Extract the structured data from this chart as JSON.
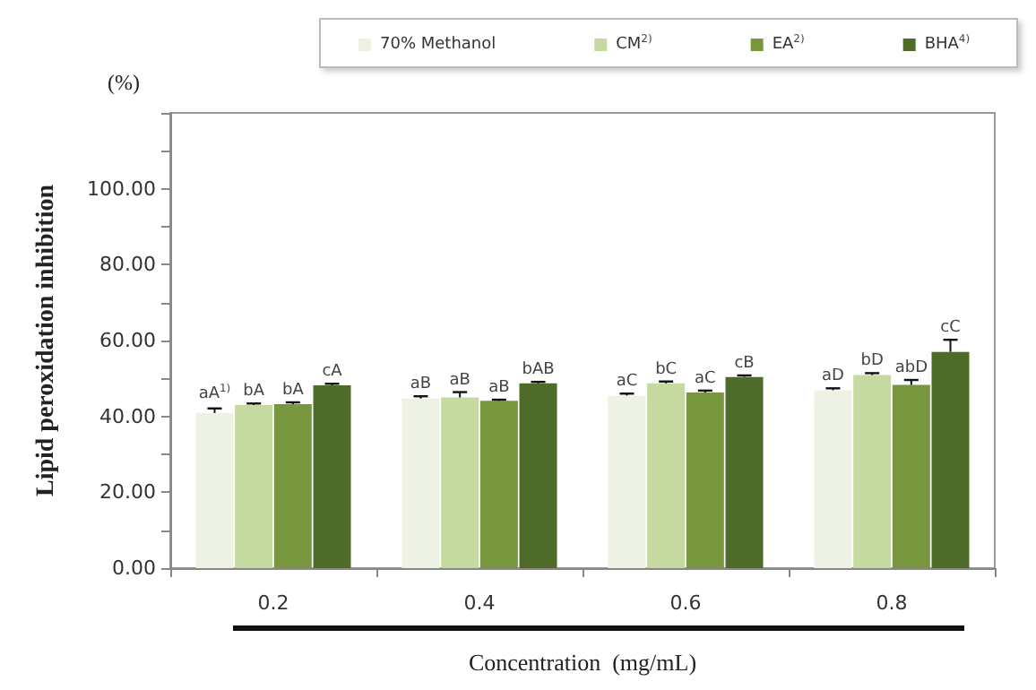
{
  "chart_data": {
    "type": "bar",
    "xlabel": "Concentration  (mg/mL)",
    "ylabel": "Lipid peroxidation inhibition",
    "annotations": [
      "aA$^{1)}$",
      "bA",
      "bA",
      "cA",
      "aB",
      "aB",
      "aB",
      "bAB",
      "aC",
      "bC",
      "aC",
      "cB",
      "aD",
      "bD",
      "abD",
      "cC",
      "(%)"
    ],
    "categories": [
      "0.2",
      "0.4",
      "0.6",
      "0.8"
    ],
    "series": [
      {
        "name": "70% Methanol",
        "color": "#eef2e4",
        "values": [
          40.9,
          44.7,
          45.5,
          46.9
        ],
        "errors": [
          1.2,
          0.6,
          0.5,
          0.5
        ]
      },
      {
        "name": "CM$^{2)}$",
        "color": "#c5d9a0",
        "values": [
          43.0,
          45.0,
          48.7,
          50.9
        ],
        "errors": [
          0.4,
          1.4,
          0.5,
          0.5
        ]
      },
      {
        "name": "EA$^{2)}$",
        "color": "#77963e",
        "values": [
          43.2,
          44.1,
          46.3,
          48.3
        ],
        "errors": [
          0.5,
          0.3,
          0.5,
          1.3
        ]
      },
      {
        "name": "BHA$^{4)}$",
        "color": "#4f6b2a",
        "values": [
          48.2,
          48.7,
          50.4,
          57.0
        ],
        "errors": [
          0.4,
          0.4,
          0.4,
          3.2
        ]
      }
    ],
    "ylim": [
      0,
      120
    ],
    "yticks": [
      {
        "value": 0,
        "label": "0.00"
      },
      {
        "value": 10,
        "label": null
      },
      {
        "value": 20,
        "label": "20.00"
      },
      {
        "value": 30,
        "label": null
      },
      {
        "value": 40,
        "label": "40.00"
      },
      {
        "value": 50,
        "label": null
      },
      {
        "value": 60,
        "label": "60.00"
      },
      {
        "value": 70,
        "label": null
      },
      {
        "value": 80,
        "label": "80.00"
      },
      {
        "value": 90,
        "label": null
      },
      {
        "value": 100,
        "label": "100.00"
      },
      {
        "value": 110,
        "label": null
      },
      {
        "value": 120,
        "label": null
      }
    ],
    "grid": false,
    "legend": "top"
  }
}
